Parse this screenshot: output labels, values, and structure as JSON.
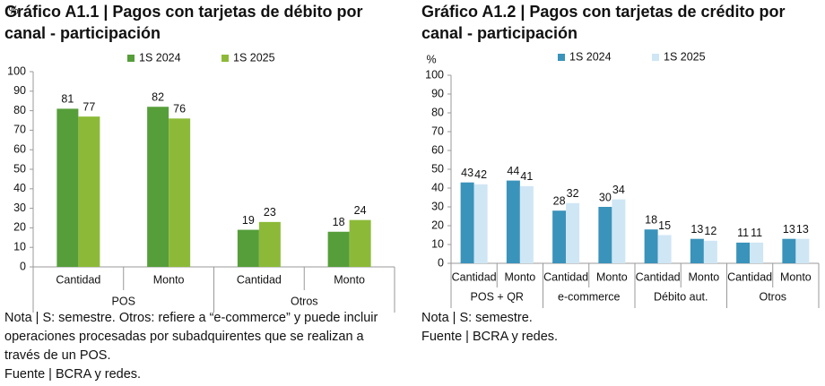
{
  "chart_data": [
    {
      "type": "bar",
      "title": "Gráfico A1.1 | Pagos con tarjetas de débito por canal - participación",
      "y_label": "%",
      "ylim": [
        0,
        100
      ],
      "yticks": [
        0,
        10,
        20,
        30,
        40,
        50,
        60,
        70,
        80,
        90,
        100
      ],
      "groups": [
        {
          "name": "POS",
          "categories": [
            "Cantidad",
            "Monto"
          ]
        },
        {
          "name": "Otros",
          "categories": [
            "Cantidad",
            "Monto"
          ]
        }
      ],
      "series": [
        {
          "name": "1S 2024",
          "color": "#559e3a",
          "values": [
            81,
            82,
            19,
            18
          ]
        },
        {
          "name": "1S 2025",
          "color": "#8cba38",
          "values": [
            77,
            76,
            23,
            24
          ]
        }
      ],
      "note": "Nota | S: semestre. Otros: refiere a “e-commerce” y puede incluir operaciones procesadas por subadquirentes que se realizan a través de un POS.",
      "source": "Fuente | BCRA y redes."
    },
    {
      "type": "bar",
      "title": "Gráfico A1.2 | Pagos con tarjetas de crédito por canal - participación",
      "y_label": "%",
      "ylim": [
        0,
        100
      ],
      "yticks": [
        0,
        10,
        20,
        30,
        40,
        50,
        60,
        70,
        80,
        90,
        100
      ],
      "groups": [
        {
          "name": "POS + QR",
          "categories": [
            "Cantidad",
            "Monto"
          ]
        },
        {
          "name": "e-commerce",
          "categories": [
            "Cantidad",
            "Monto"
          ]
        },
        {
          "name": "Débito aut.",
          "categories": [
            "Cantidad",
            "Monto"
          ]
        },
        {
          "name": "Otros",
          "categories": [
            "Cantidad",
            "Monto"
          ]
        }
      ],
      "series": [
        {
          "name": "1S 2024",
          "color": "#3a93ba",
          "values": [
            43,
            44,
            28,
            30,
            18,
            13,
            11,
            13
          ]
        },
        {
          "name": "1S 2025",
          "color": "#cfe6f5",
          "values": [
            42,
            41,
            32,
            34,
            15,
            12,
            11,
            13
          ]
        }
      ],
      "note": "Nota | S: semestre.",
      "source": "Fuente | BCRA y redes."
    }
  ]
}
